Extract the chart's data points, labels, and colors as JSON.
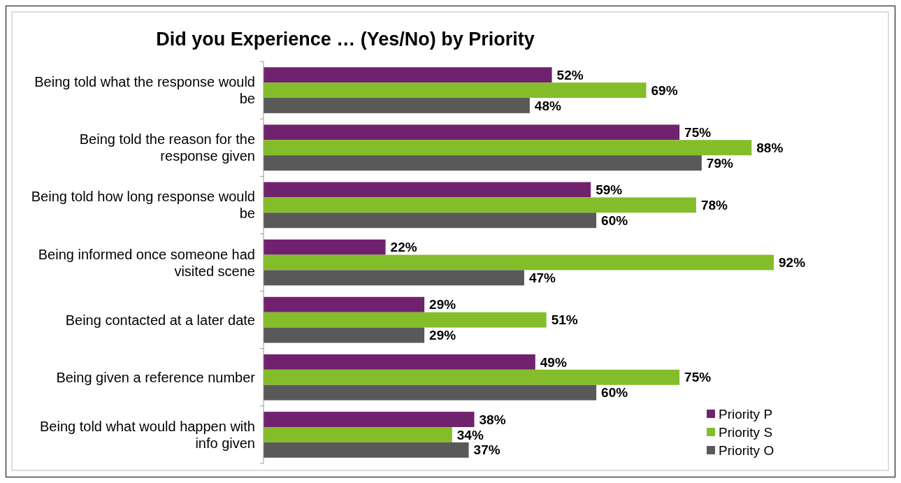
{
  "chart_data": {
    "type": "bar",
    "orientation": "horizontal",
    "title": "Did you Experience … (Yes/No) by Priority",
    "categories": [
      "Being told what the response would be",
      "Being told the reason for the response given",
      "Being told how long response would be",
      "Being informed once someone had visited scene",
      "Being contacted at a later date",
      "Being given a reference number",
      "Being told what would happen with info given"
    ],
    "series": [
      {
        "name": "Priority P",
        "color": "#71226e",
        "values": [
          52,
          75,
          59,
          22,
          29,
          49,
          38
        ],
        "value_labels": [
          "52%",
          "75%",
          "59%",
          "22%",
          "29%",
          "49%",
          "38%"
        ]
      },
      {
        "name": "Priority S",
        "color": "#84bd2a",
        "values": [
          69,
          88,
          78,
          92,
          51,
          75,
          34
        ],
        "value_labels": [
          "69%",
          "88%",
          "78%",
          "92%",
          "51%",
          "75%",
          "34%"
        ]
      },
      {
        "name": "Priority O",
        "color": "#595959",
        "values": [
          48,
          79,
          60,
          47,
          29,
          60,
          37
        ],
        "value_labels": [
          "48%",
          "79%",
          "60%",
          "47%",
          "29%",
          "60%",
          "37%"
        ]
      }
    ],
    "tick_labels": "y",
    "legend": "bottom right"
  }
}
